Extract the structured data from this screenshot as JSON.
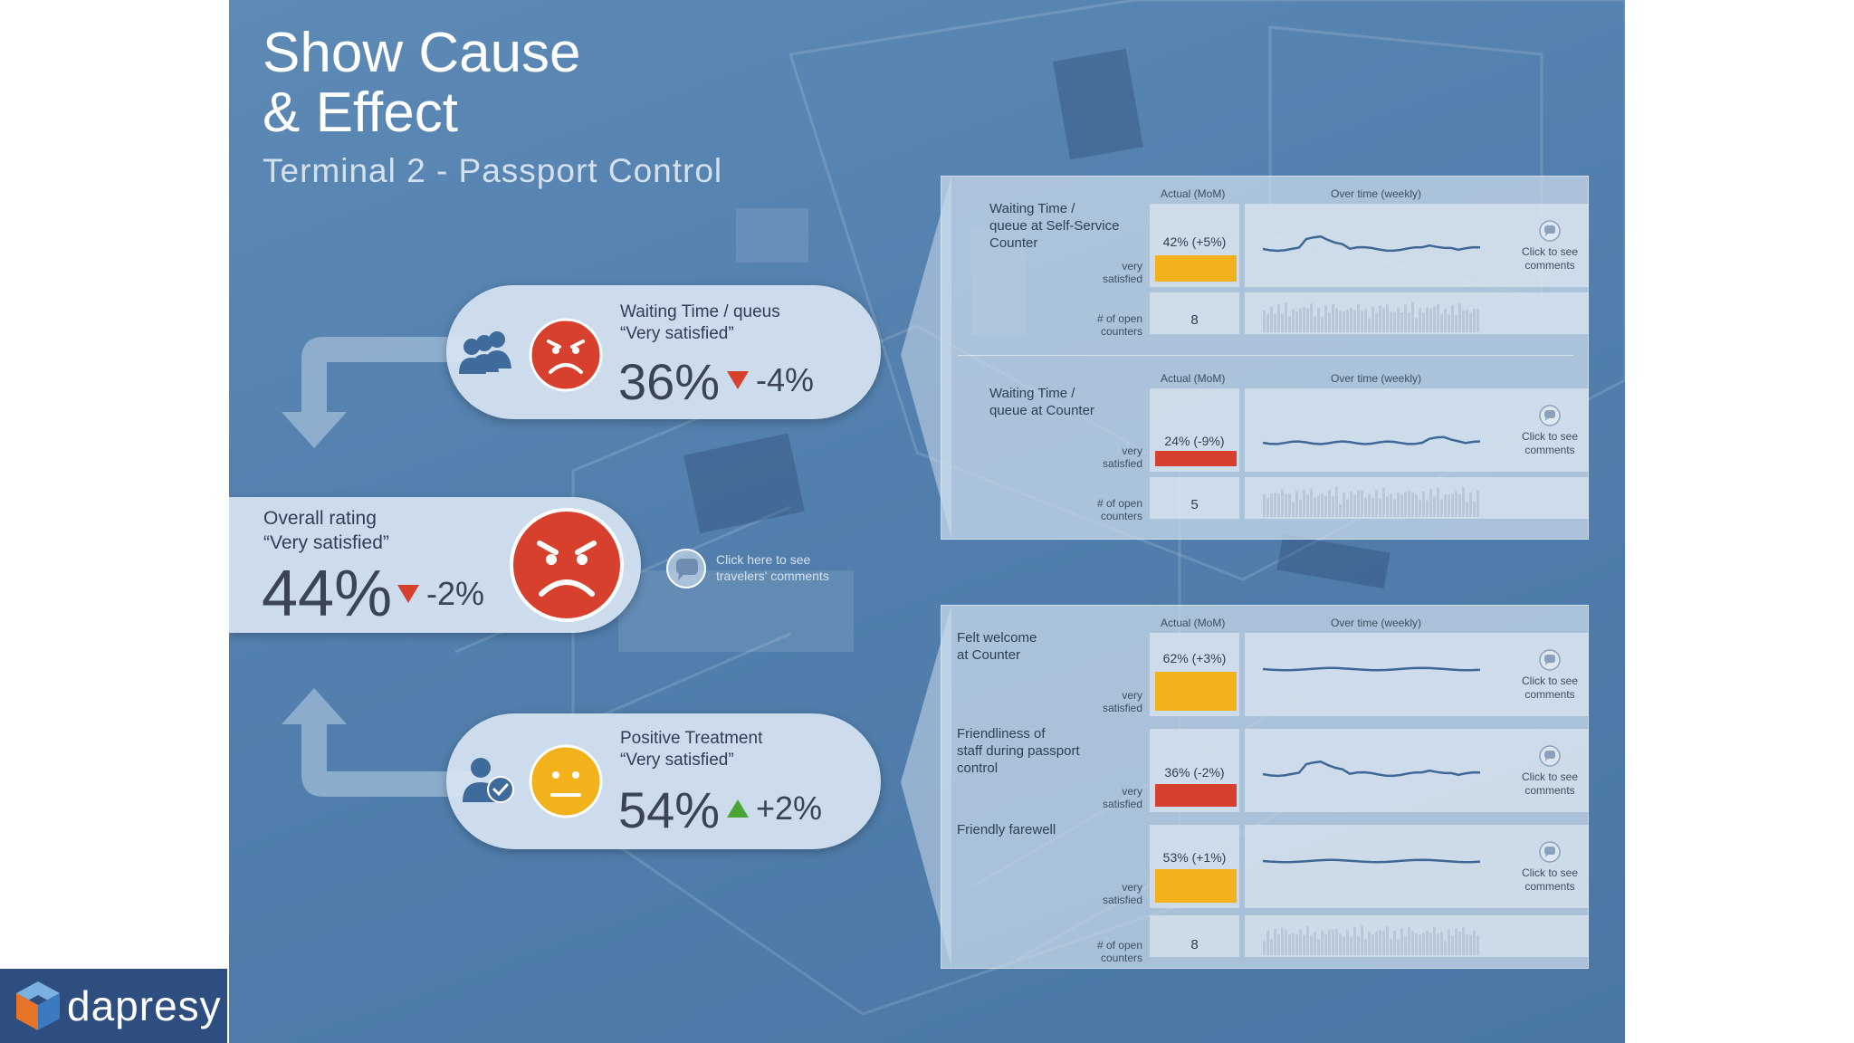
{
  "slide": {
    "title": "Show Cause\n& Effect",
    "subtitle": "Terminal 2 - Passport Control"
  },
  "kpis": {
    "waiting": {
      "label_line1": "Waiting Time / queus",
      "label_line2": "“Very satisfied”",
      "value": "36%",
      "delta": "-4%",
      "trend": "down",
      "face": "angry-face-icon"
    },
    "overall": {
      "label_line1": "Overall rating",
      "label_line2": "“Very satisfied”",
      "value": "44%",
      "delta": "-2%",
      "trend": "down",
      "face": "angry-face-icon"
    },
    "treatment": {
      "label_line1": "Positive Treatment",
      "label_line2": "“Very satisfied”",
      "value": "54%",
      "delta": "+2%",
      "trend": "up",
      "face": "neutral-face-icon"
    }
  },
  "travelers_comments": {
    "line1": "Click here to see",
    "line2": "travelers' comments"
  },
  "labels": {
    "actual": "Actual (MoM)",
    "over_time": "Over time (weekly)",
    "very": "very",
    "satisfied": "satisfied",
    "open1": "# of open",
    "open2": "counters",
    "cmt1": "Click to see",
    "cmt2": "comments"
  },
  "panel_a": [
    {
      "name": "Waiting Time /\nqueue at Self-Service\nCounter",
      "bar_label": "42% (+5%)",
      "bar_pct": 42,
      "counters": "8"
    },
    {
      "name": "Waiting Time /\nqueue at Counter",
      "bar_label": "24% (-9%)",
      "bar_pct": 24,
      "counters": "5"
    }
  ],
  "panel_b": [
    {
      "name": "Felt welcome\nat Counter",
      "bar_label": "62% (+3%)",
      "bar_pct": 62
    },
    {
      "name": "Friendliness of\nstaff during passport\ncontrol",
      "bar_label": "36% (-2%)",
      "bar_pct": 36
    },
    {
      "name": "Friendly farewell",
      "bar_label": "53% (+1%)",
      "bar_pct": 53,
      "counters": "8"
    }
  ],
  "colors": {
    "red": "#d8402e",
    "amber": "#f2b21b",
    "line": "#3f6796",
    "bars": "#b8c8da"
  },
  "brand": {
    "name": "dapresy"
  }
}
